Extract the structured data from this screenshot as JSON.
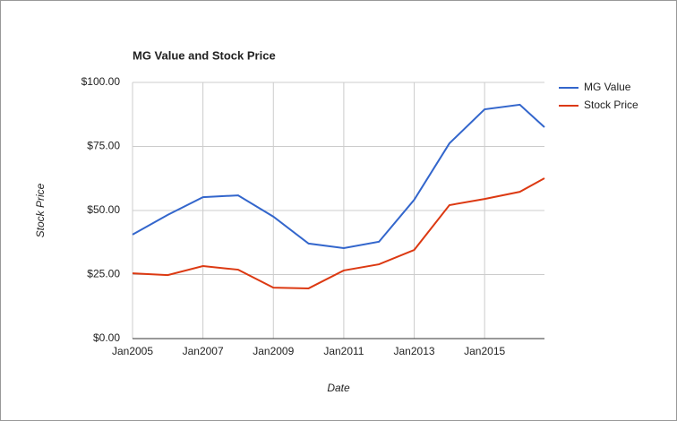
{
  "chart_data": {
    "type": "line",
    "title": "MG Value and Stock Price",
    "x_label": "Date",
    "y_label": "Stock Price",
    "x": [
      2005,
      2006,
      2007,
      2008,
      2009,
      2010,
      2011,
      2012,
      2013,
      2014,
      2015,
      2016,
      2016.7
    ],
    "xlim": [
      2005,
      2016.7
    ],
    "xticks": [
      {
        "value": 2005,
        "label": "Jan2005"
      },
      {
        "value": 2007,
        "label": "Jan2007"
      },
      {
        "value": 2009,
        "label": "Jan2009"
      },
      {
        "value": 2011,
        "label": "Jan2011"
      },
      {
        "value": 2013,
        "label": "Jan2013"
      },
      {
        "value": 2015,
        "label": "Jan2015"
      }
    ],
    "ylim": [
      0,
      100
    ],
    "yticks": [
      {
        "value": 0,
        "label": "$0.00"
      },
      {
        "value": 25,
        "label": "$25.00"
      },
      {
        "value": 50,
        "label": "$50.00"
      },
      {
        "value": 75,
        "label": "$75.00"
      },
      {
        "value": 100,
        "label": "$100.00"
      }
    ],
    "grid": true,
    "legend": "right",
    "series": [
      {
        "name": "MG Value",
        "color": "#3366cc",
        "values": [
          40.6,
          48.3,
          55.2,
          55.9,
          47.6,
          37.1,
          35.3,
          37.8,
          54.2,
          76.2,
          89.5,
          91.3,
          82.5
        ]
      },
      {
        "name": "Stock Price",
        "color": "#dc3912",
        "values": [
          25.5,
          24.8,
          28.3,
          26.9,
          19.9,
          19.6,
          26.6,
          29.0,
          34.6,
          52.1,
          54.5,
          57.3,
          62.6
        ]
      }
    ]
  }
}
